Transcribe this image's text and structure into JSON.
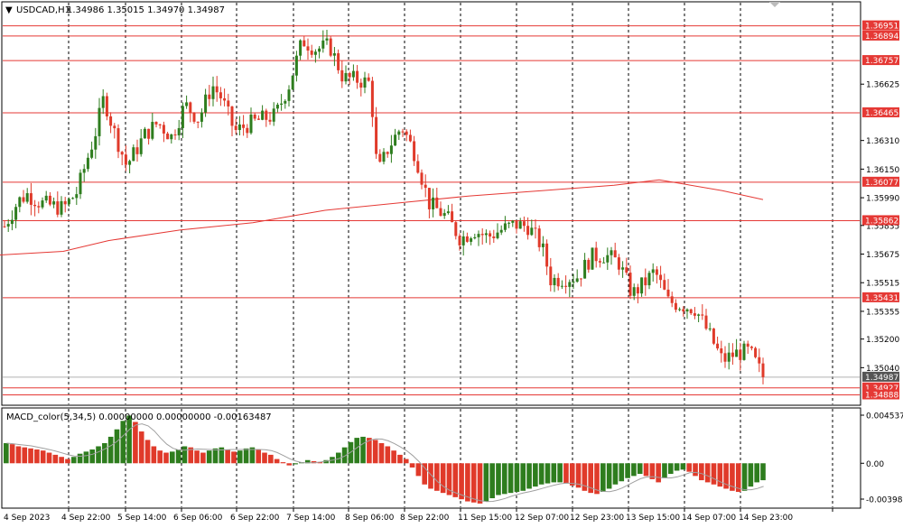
{
  "header": {
    "menu_arrow": "▼",
    "symbol": "USDCAD,H1",
    "ohlc": "1.34986 1.35015 1.34970 1.34987"
  },
  "macd_header": "MACD_color(5,34,5) 0.00000000 0.00000000 -0.00163487",
  "macd_axis": [
    "0.0045375",
    "0.00",
    "-0.0039800"
  ],
  "colors": {
    "bull": "#2e7d1e",
    "bear": "#e03a2a",
    "level_line": "#e53935",
    "ma_line": "#e53935",
    "grid": "#000000",
    "axis_text": "#000000"
  },
  "icons": {
    "corner_marker": "triangle-down-icon"
  },
  "price_axis": {
    "ticks": [
      "1.36625",
      "1.36310",
      "1.36150",
      "1.35990",
      "1.35835",
      "1.35675",
      "1.35515",
      "1.35355",
      "1.35200",
      "1.35040"
    ],
    "levels": [
      "1.36951",
      "1.36894",
      "1.36757",
      "1.36465",
      "1.36077",
      "1.35862",
      "1.35431",
      "1.34927",
      "1.34888"
    ],
    "current": "1.34987"
  },
  "time_axis": [
    "4 Sep 2023",
    "4 Sep 22:00",
    "5 Sep 14:00",
    "6 Sep 06:00",
    "6 Sep 22:00",
    "7 Sep 14:00",
    "8 Sep 06:00",
    "8 Sep 22:00",
    "11 Sep 15:00",
    "12 Sep 07:00",
    "12 Sep 23:00",
    "13 Sep 15:00",
    "14 Sep 07:00",
    "14 Sep 23:00"
  ],
  "chart_data": {
    "type": "candlestick",
    "price_range": [
      1.3484,
      1.3705
    ],
    "ma_points": [
      [
        0,
        1.3567
      ],
      [
        70,
        1.3569
      ],
      [
        120,
        1.3575
      ],
      [
        200,
        1.3581
      ],
      [
        280,
        1.3585
      ],
      [
        360,
        1.3592
      ],
      [
        440,
        1.3596
      ],
      [
        520,
        1.36
      ],
      [
        600,
        1.3603
      ],
      [
        680,
        1.3606
      ],
      [
        730,
        1.3609
      ],
      [
        800,
        1.3603
      ],
      [
        845,
        1.3598
      ]
    ],
    "price_path": [
      [
        5,
        1.3583
      ],
      [
        20,
        1.3597
      ],
      [
        30,
        1.3601
      ],
      [
        45,
        1.3596
      ],
      [
        70,
        1.3593
      ],
      [
        85,
        1.3602
      ],
      [
        105,
        1.3634
      ],
      [
        115,
        1.3655
      ],
      [
        125,
        1.3638
      ],
      [
        140,
        1.3617
      ],
      [
        150,
        1.3625
      ],
      [
        160,
        1.3634
      ],
      [
        175,
        1.3641
      ],
      [
        190,
        1.3633
      ],
      [
        205,
        1.3651
      ],
      [
        220,
        1.3643
      ],
      [
        235,
        1.3662
      ],
      [
        245,
        1.3655
      ],
      [
        260,
        1.3636
      ],
      [
        275,
        1.364
      ],
      [
        290,
        1.3643
      ],
      [
        305,
        1.3645
      ],
      [
        320,
        1.3662
      ],
      [
        335,
        1.3687
      ],
      [
        350,
        1.3682
      ],
      [
        365,
        1.3684
      ],
      [
        380,
        1.3666
      ],
      [
        395,
        1.3665
      ],
      [
        410,
        1.3663
      ],
      [
        418,
        1.3612
      ],
      [
        430,
        1.3627
      ],
      [
        445,
        1.3639
      ],
      [
        460,
        1.3623
      ],
      [
        475,
        1.3596
      ],
      [
        495,
        1.3588
      ],
      [
        510,
        1.3576
      ],
      [
        525,
        1.3581
      ],
      [
        540,
        1.3577
      ],
      [
        555,
        1.3581
      ],
      [
        570,
        1.3584
      ],
      [
        585,
        1.3583
      ],
      [
        600,
        1.3572
      ],
      [
        610,
        1.3553
      ],
      [
        625,
        1.3554
      ],
      [
        640,
        1.3555
      ],
      [
        655,
        1.3566
      ],
      [
        670,
        1.3567
      ],
      [
        685,
        1.3563
      ],
      [
        700,
        1.3545
      ],
      [
        715,
        1.3552
      ],
      [
        725,
        1.3558
      ],
      [
        740,
        1.3541
      ],
      [
        755,
        1.3539
      ],
      [
        770,
        1.3537
      ],
      [
        785,
        1.3523
      ],
      [
        800,
        1.3508
      ],
      [
        815,
        1.3512
      ],
      [
        830,
        1.3513
      ],
      [
        845,
        1.3499
      ]
    ],
    "macd_values": [
      0.0019,
      0.0018,
      0.0016,
      0.0015,
      0.0014,
      0.0013,
      0.0012,
      0.001,
      0.0008,
      0.0006,
      0.0004,
      0.0006,
      0.0009,
      0.0011,
      0.0013,
      0.0016,
      0.0019,
      0.0025,
      0.0032,
      0.004,
      0.0045,
      0.0039,
      0.003,
      0.0022,
      0.0016,
      0.0012,
      0.001,
      0.0011,
      0.0013,
      0.0016,
      0.0015,
      0.0012,
      0.001,
      0.0012,
      0.0014,
      0.0015,
      0.0013,
      0.0011,
      0.0012,
      0.0014,
      0.0015,
      0.0013,
      0.001,
      0.0008,
      0.0004,
      0.0001,
      -0.0002,
      -0.0001,
      0.0001,
      0.0003,
      0.0002,
      0.0001,
      0.0003,
      0.0006,
      0.001,
      0.0015,
      0.002,
      0.0024,
      0.0025,
      0.0024,
      0.0022,
      0.0019,
      0.0016,
      0.0012,
      0.0008,
      0.0004,
      -0.0004,
      -0.0012,
      -0.002,
      -0.0024,
      -0.0026,
      -0.0028,
      -0.003,
      -0.0032,
      -0.0034,
      -0.0036,
      -0.0037,
      -0.0038,
      -0.0036,
      -0.0033,
      -0.003,
      -0.0029,
      -0.0028,
      -0.0027,
      -0.0026,
      -0.0024,
      -0.0022,
      -0.002,
      -0.0019,
      -0.0018,
      -0.0018,
      -0.0019,
      -0.0021,
      -0.0023,
      -0.0026,
      -0.0028,
      -0.0029,
      -0.0027,
      -0.0024,
      -0.002,
      -0.0017,
      -0.0014,
      -0.0012,
      -0.001,
      -0.0012,
      -0.0015,
      -0.0018,
      -0.0014,
      -0.001,
      -0.0007,
      -0.0006,
      -0.0008,
      -0.0012,
      -0.0016,
      -0.0018,
      -0.002,
      -0.0022,
      -0.0024,
      -0.0026,
      -0.0027,
      -0.0026,
      -0.0022,
      -0.0018,
      -0.0016
    ],
    "macd_range": [
      -0.00398,
      0.0045375
    ]
  }
}
